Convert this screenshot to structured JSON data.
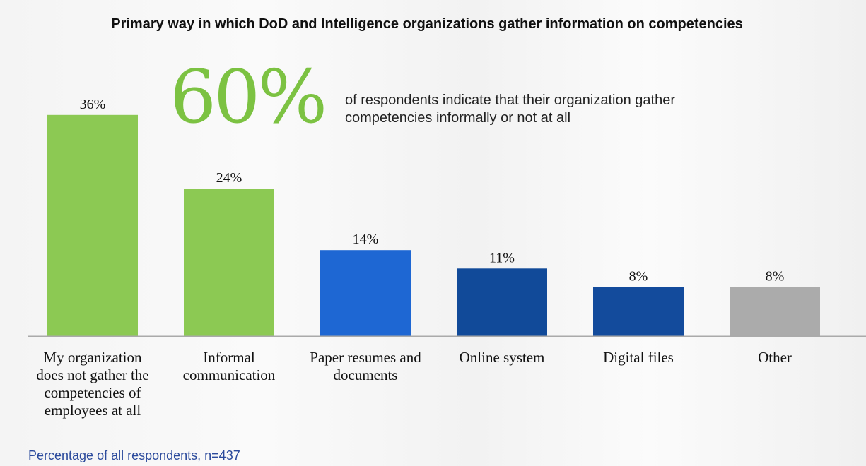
{
  "chart_data": {
    "type": "bar",
    "title": "Primary way in which DoD and Intelligence organizations gather information on competencies",
    "categories": [
      {
        "label": "My organization does not gather the competencies of employees at all",
        "lines": [
          "My organization",
          "does not gather the",
          "competencies of",
          "employees at all"
        ]
      },
      {
        "label": "Informal communication",
        "lines": [
          "Informal",
          "communication"
        ]
      },
      {
        "label": "Paper resumes and documents",
        "lines": [
          "Paper resumes and",
          "documents"
        ]
      },
      {
        "label": "Online system",
        "lines": [
          "Online system"
        ]
      },
      {
        "label": "Digital files",
        "lines": [
          "Digital files"
        ]
      },
      {
        "label": "Other",
        "lines": [
          "Other"
        ]
      }
    ],
    "values": [
      36,
      24,
      14,
      11,
      8,
      8
    ],
    "value_labels": [
      "36%",
      "24%",
      "14%",
      "11%",
      "8%",
      "8%"
    ],
    "colors": [
      "#8cc953",
      "#8cc953",
      "#1e67d3",
      "#114a99",
      "#134b9c",
      "#ababab"
    ],
    "ylim": [
      0,
      40
    ],
    "xlabel": "",
    "ylabel": "",
    "grid": false,
    "callout": {
      "big": "60%",
      "lines": [
        "of respondents indicate that their organization gather",
        "competencies informally or not at all"
      ]
    },
    "footnote": "Percentage of all respondents, n=437"
  }
}
